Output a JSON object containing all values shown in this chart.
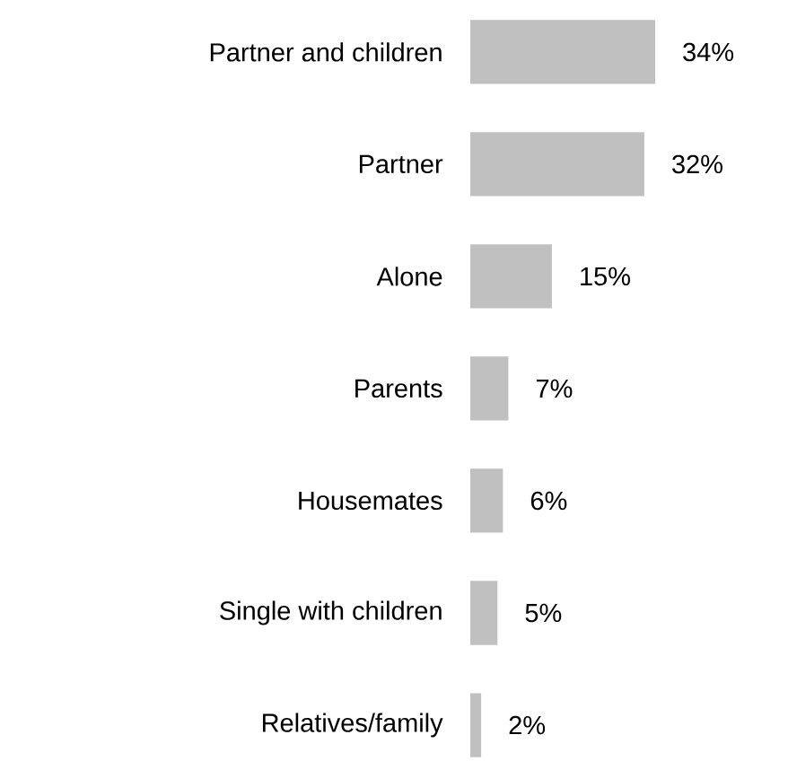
{
  "chart_data": {
    "type": "bar",
    "orientation": "horizontal",
    "categories": [
      "Partner and children",
      "Partner",
      "Alone",
      "Parents",
      "Housemates",
      "Single with children",
      "Relatives/family"
    ],
    "values": [
      34,
      32,
      15,
      7,
      6,
      5,
      2
    ],
    "value_labels": [
      "34%",
      "32%",
      "15%",
      "7%",
      "6%",
      "5%",
      "2%"
    ],
    "color": "#c0c0c0"
  }
}
